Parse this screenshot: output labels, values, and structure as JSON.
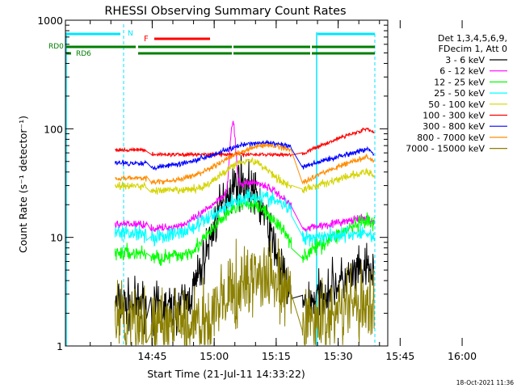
{
  "chart_data": {
    "type": "line",
    "title": "RHESSI Observing Summary Count Rates",
    "xlabel": "Start Time (21-Jul-11 14:33:22)",
    "ylabel": "Count Rate (s⁻¹ detector⁻¹)",
    "yscale": "log",
    "ylim": [
      1,
      1000
    ],
    "xlim_minutes": [
      -9,
      69
    ],
    "x_ticks": [
      {
        "t": 12,
        "label": "14:45"
      },
      {
        "t": 27,
        "label": "15:00"
      },
      {
        "t": 42,
        "label": "15:15"
      },
      {
        "t": 57,
        "label": "15:30"
      },
      {
        "t": 72,
        "label": "15:45"
      },
      {
        "t": 87,
        "label": "16:00"
      }
    ],
    "y_ticks": [
      {
        "v": 1,
        "label": "1"
      },
      {
        "v": 10,
        "label": "10"
      },
      {
        "v": 100,
        "label": "100"
      },
      {
        "v": 1000,
        "label": "1000"
      }
    ],
    "legend_header": [
      "Det 1,3,4,5,6,9,",
      "FDecim 1, Att 0"
    ],
    "legend_position": "right",
    "timestamp": "18-Oct-2021 11:36",
    "flag_labels": {
      "night": "N",
      "flare": "F",
      "rd0": "RD0",
      "rd6": "RD6"
    },
    "series": [
      {
        "name": "3 - 6 keV",
        "color": "#000000",
        "base": 2.2,
        "peak": 30,
        "tpk": 33.5,
        "w": 4.5,
        "plat": 5,
        "noise": 0.35
      },
      {
        "name": "6 - 12 keV",
        "color": "#ff00ff",
        "base": 12,
        "peak": 20,
        "tpk": 36,
        "w": 7,
        "plat": 15,
        "noise": 0.06,
        "spike": {
          "t": 31.5,
          "v": 85
        }
      },
      {
        "name": "12 - 25 keV",
        "color": "#00ff00",
        "base": 6.5,
        "peak": 14,
        "tpk": 35,
        "w": 6,
        "plat": 14,
        "noise": 0.12
      },
      {
        "name": "25 - 50 keV",
        "color": "#00ffff",
        "base": 10,
        "peak": 14,
        "tpk": 37,
        "w": 8,
        "plat": 11,
        "noise": 0.12
      },
      {
        "name": "50 - 100 keV",
        "color": "#d4d400",
        "base": 27,
        "peak": 24,
        "tpk": 35,
        "w": 5,
        "plat": 40,
        "noise": 0.06
      },
      {
        "name": "100 - 300 keV",
        "color": "#ff0000",
        "base": 58,
        "peak": 0,
        "tpk": 40,
        "w": 8,
        "plat": 100,
        "noise": 0.03
      },
      {
        "name": "300 - 800 keV",
        "color": "#0000ff",
        "base": 44,
        "peak": 30,
        "tpk": 39,
        "w": 10,
        "plat": 65,
        "noise": 0.04
      },
      {
        "name": "800 - 7000 keV",
        "color": "#ff8c00",
        "base": 32,
        "peak": 38,
        "tpk": 40,
        "w": 9,
        "plat": 55,
        "noise": 0.04
      },
      {
        "name": "7000 - 15000 keV",
        "color": "#8b8000",
        "base": 1.5,
        "peak": 2.8,
        "tpk": 38,
        "w": 6,
        "plat": 2.5,
        "noise": 0.55
      }
    ]
  }
}
